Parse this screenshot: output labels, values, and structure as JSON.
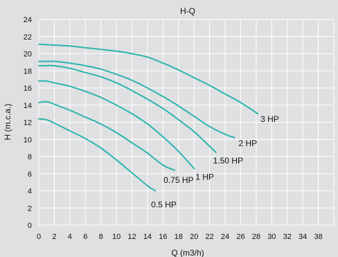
{
  "chart_data": {
    "type": "line",
    "title": "H-Q",
    "xlabel": "Q (m3/h)",
    "ylabel": "H (m.c.a.)",
    "xlim": [
      0,
      38
    ],
    "ylim": [
      0,
      24
    ],
    "xticks": [
      0,
      2,
      4,
      6,
      8,
      10,
      12,
      14,
      16,
      18,
      20,
      22,
      24,
      26,
      28,
      30,
      32,
      34,
      38
    ],
    "yticks": [
      0,
      2,
      4,
      6,
      8,
      10,
      12,
      14,
      16,
      18,
      20,
      22,
      24
    ],
    "grid": true,
    "legend": "none",
    "series_color": "#2bb5ac",
    "series": [
      {
        "name": "0.5 HP",
        "x": [
          0,
          1,
          2,
          4,
          6,
          8,
          10,
          12,
          14,
          15
        ],
        "y": [
          12.4,
          12.3,
          11.9,
          11.0,
          10.1,
          9.0,
          7.6,
          6.1,
          4.6,
          4.0
        ]
      },
      {
        "name": "0.75 HP",
        "x": [
          0,
          1,
          2,
          4,
          6,
          8,
          10,
          12,
          14,
          16,
          17.5
        ],
        "y": [
          14.3,
          14.4,
          14.1,
          13.4,
          12.6,
          11.8,
          10.8,
          9.6,
          8.4,
          7.0,
          6.4
        ]
      },
      {
        "name": "1 HP",
        "x": [
          0,
          1,
          2,
          4,
          6,
          8,
          10,
          12,
          14,
          16,
          18,
          20
        ],
        "y": [
          16.8,
          16.8,
          16.6,
          16.2,
          15.6,
          14.9,
          14.0,
          13.0,
          11.8,
          10.3,
          8.6,
          6.6
        ]
      },
      {
        "name": "1.50 HP",
        "x": [
          0,
          1,
          2,
          4,
          6,
          8,
          10,
          12,
          14,
          16,
          18,
          20,
          22,
          22.8
        ],
        "y": [
          18.6,
          18.6,
          18.6,
          18.3,
          17.8,
          17.3,
          16.6,
          15.7,
          14.7,
          13.6,
          12.3,
          10.9,
          9.2,
          8.5
        ]
      },
      {
        "name": "2 HP",
        "x": [
          0,
          1,
          2,
          4,
          6,
          8,
          10,
          12,
          14,
          16,
          18,
          20,
          22,
          24,
          25.2
        ],
        "y": [
          19.1,
          19.1,
          19.1,
          18.9,
          18.6,
          18.2,
          17.6,
          16.9,
          16.0,
          15.0,
          13.9,
          12.7,
          11.5,
          10.6,
          10.2
        ]
      },
      {
        "name": "3 HP",
        "x": [
          0,
          2,
          4,
          6,
          8,
          10,
          12,
          14,
          16,
          18,
          20,
          22,
          24,
          26,
          28.2
        ],
        "y": [
          21.1,
          21.0,
          20.9,
          20.7,
          20.5,
          20.3,
          20.0,
          19.6,
          18.9,
          18.1,
          17.2,
          16.3,
          15.3,
          14.3,
          13.0
        ]
      }
    ]
  }
}
